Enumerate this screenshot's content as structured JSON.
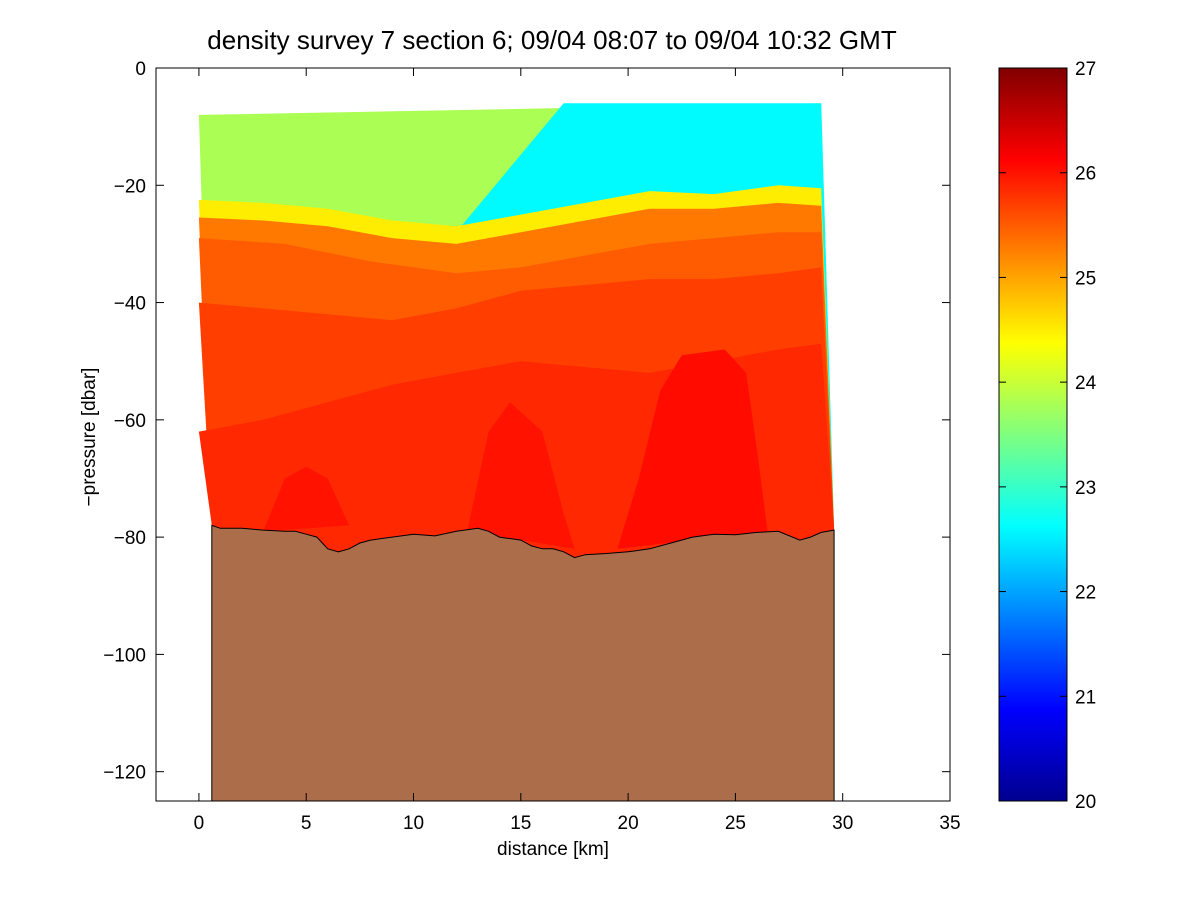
{
  "chart_data": {
    "type": "heatmap",
    "title": "density survey 7 section 6; 09/04 08:07 to 09/04 10:32 GMT",
    "xlabel": "distance [km]",
    "ylabel": "−pressure [dbar]",
    "xlim": [
      -2,
      35
    ],
    "ylim": [
      -125,
      0
    ],
    "xticks": [
      0,
      5,
      10,
      15,
      20,
      25,
      30,
      35
    ],
    "xtick_labels": [
      "0",
      "5",
      "10",
      "15",
      "20",
      "25",
      "30",
      "35"
    ],
    "yticks": [
      0,
      -20,
      -40,
      -60,
      -80,
      -100,
      -120
    ],
    "ytick_labels": [
      "0",
      "−20",
      "−40",
      "−60",
      "−80",
      "−100",
      "−120"
    ],
    "colorbar": {
      "clim": [
        20,
        27
      ],
      "ticks": [
        20,
        21,
        22,
        23,
        24,
        25,
        26,
        27
      ],
      "tick_labels": [
        "20",
        "21",
        "22",
        "23",
        "24",
        "25",
        "26",
        "27"
      ],
      "colormap": "jet"
    },
    "layers": [
      {
        "density": 23.8,
        "top": [
          [
            0,
            -8
          ],
          [
            29,
            -6
          ]
        ]
      },
      {
        "density": 22.6,
        "top": [
          [
            17,
            -6
          ],
          [
            29,
            -6
          ]
        ]
      },
      {
        "density": 24.5,
        "top": [
          [
            0,
            -22.5
          ],
          [
            3,
            -23
          ],
          [
            6,
            -24
          ],
          [
            9,
            -26
          ],
          [
            12,
            -27
          ],
          [
            15,
            -25
          ],
          [
            18,
            -23
          ],
          [
            21,
            -21
          ],
          [
            24,
            -21.5
          ],
          [
            27,
            -20
          ],
          [
            29,
            -20.5
          ]
        ]
      },
      {
        "density": 25.3,
        "top": [
          [
            0,
            -25.5
          ],
          [
            3,
            -26
          ],
          [
            6,
            -27
          ],
          [
            9,
            -29
          ],
          [
            12,
            -30
          ],
          [
            15,
            -28
          ],
          [
            18,
            -26
          ],
          [
            21,
            -24
          ],
          [
            24,
            -24
          ],
          [
            27,
            -23
          ],
          [
            29,
            -23.5
          ]
        ]
      },
      {
        "density": 25.5,
        "top": [
          [
            0,
            -29
          ],
          [
            4,
            -30
          ],
          [
            8,
            -33
          ],
          [
            12,
            -35
          ],
          [
            15,
            -34
          ],
          [
            18,
            -32
          ],
          [
            21,
            -30
          ],
          [
            24,
            -29
          ],
          [
            27,
            -28
          ],
          [
            29,
            -28
          ]
        ]
      },
      {
        "density": 25.7,
        "top": [
          [
            0,
            -40
          ],
          [
            3,
            -41
          ],
          [
            6,
            -42
          ],
          [
            9,
            -43
          ],
          [
            12,
            -41
          ],
          [
            15,
            -38
          ],
          [
            18,
            -37
          ],
          [
            21,
            -36
          ],
          [
            24,
            -36
          ],
          [
            27,
            -35
          ],
          [
            29,
            -34
          ]
        ]
      },
      {
        "density": 25.85,
        "top": [
          [
            0,
            -62
          ],
          [
            3,
            -60
          ],
          [
            6,
            -57
          ],
          [
            9,
            -54
          ],
          [
            12,
            -52
          ],
          [
            15,
            -50
          ],
          [
            18,
            -51
          ],
          [
            21,
            -52
          ],
          [
            24,
            -50
          ],
          [
            27,
            -48
          ],
          [
            29,
            -47
          ]
        ]
      }
    ],
    "cores": [
      {
        "density": 26.0,
        "outline": [
          [
            3,
            -79
          ],
          [
            4,
            -70
          ],
          [
            5,
            -68
          ],
          [
            6,
            -70
          ],
          [
            7,
            -78
          ]
        ]
      },
      {
        "density": 26.0,
        "outline": [
          [
            12.5,
            -79
          ],
          [
            13.5,
            -62
          ],
          [
            14.5,
            -57
          ],
          [
            16,
            -62
          ],
          [
            17,
            -76
          ],
          [
            17.5,
            -82
          ]
        ]
      },
      {
        "density": 26.05,
        "outline": [
          [
            19.5,
            -82
          ],
          [
            20.5,
            -70
          ],
          [
            21.5,
            -55
          ],
          [
            22.5,
            -49
          ],
          [
            24.5,
            -48
          ],
          [
            25.5,
            -52
          ],
          [
            26,
            -65
          ],
          [
            26.5,
            -79
          ]
        ]
      }
    ],
    "bottom": {
      "color": "#ac6e4a",
      "x": [
        0.6,
        1,
        2,
        3,
        4,
        4.5,
        5,
        5.5,
        6,
        6.5,
        7,
        7.5,
        8,
        9,
        10,
        11,
        12,
        13,
        13.5,
        14,
        15,
        15.5,
        16,
        16.5,
        17,
        17.5,
        18,
        19,
        20,
        21,
        22,
        23,
        24,
        25,
        26,
        27,
        28,
        28.5,
        29,
        29.6
      ],
      "depth": [
        -78,
        -78.5,
        -78.5,
        -78.8,
        -79,
        -79,
        -79.5,
        -80,
        -82,
        -82.5,
        -82,
        -81,
        -80.5,
        -80,
        -79.5,
        -79.8,
        -79,
        -78.5,
        -79,
        -80,
        -80.5,
        -81.5,
        -82,
        -82,
        -82.5,
        -83.5,
        -83,
        -82.8,
        -82.5,
        -82,
        -81,
        -80,
        -79.5,
        -79.6,
        -79.2,
        -79,
        -80.5,
        -80,
        -79.2,
        -78.8
      ]
    }
  }
}
